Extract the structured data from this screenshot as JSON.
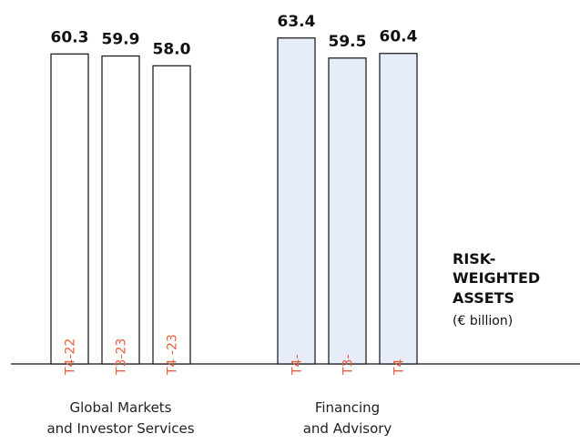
{
  "chart_data": {
    "type": "bar",
    "title_lines": [
      "RISK-",
      "WEIGHTED",
      "ASSETS"
    ],
    "subtitle": "(€ billion)",
    "categories": [
      [
        "Global Markets",
        "and Investor Services"
      ],
      [
        "Financing",
        "and Advisory"
      ]
    ],
    "category_colors": [
      "#ffffff",
      "#e6ecf8"
    ],
    "series": [
      {
        "name": "T4-22",
        "values": [
          60.3,
          63.4
        ]
      },
      {
        "name": "T3-23",
        "values": [
          59.9,
          59.5
        ]
      },
      {
        "name": "T4 -23",
        "values": [
          58.0,
          60.4
        ],
        "value_labels": [
          "58.0",
          "60.4"
        ]
      }
    ]
  }
}
